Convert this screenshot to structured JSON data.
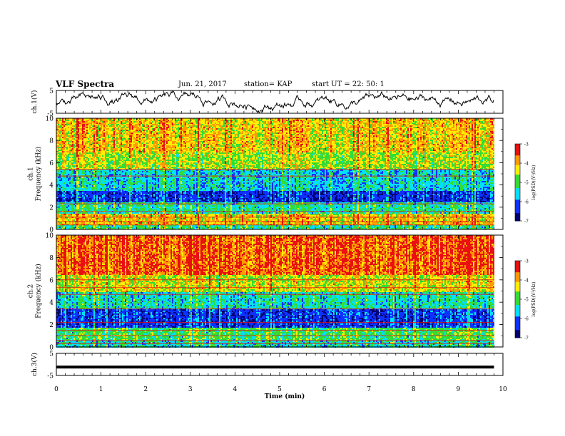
{
  "header": {
    "title": "VLF Spectra",
    "date": "Jun. 21, 2017",
    "station": "station= KAP",
    "start": "start UT =  22: 50: 1"
  },
  "chart_data": [
    {
      "type": "line",
      "name": "ch1-waveform",
      "ylabel": "ch.1(V)",
      "ylim": [
        -5,
        5
      ],
      "yticks": [
        "5",
        "-5"
      ],
      "xlim": [
        0,
        10
      ],
      "series": [
        {
          "name": "",
          "description_free": true,
          "noise_amplitude_V": 3.5,
          "x_end": 9.8
        }
      ]
    },
    {
      "type": "heatmap",
      "name": "ch1-spectrogram",
      "ylabel": "ch.1\nFrequency (kHz)",
      "ylim": [
        0,
        10
      ],
      "yticks": [
        "0",
        "2",
        "4",
        "6",
        "8",
        "10"
      ],
      "xlim": [
        0,
        9.8
      ],
      "colorbar": {
        "label": "log(PSD)(V²/Hz)",
        "ticks": [
          "-3",
          "-4",
          "-5",
          "-6",
          "-7"
        ],
        "range": [
          -7,
          -3
        ]
      },
      "bands": [
        {
          "f": [
            0,
            0.5
          ],
          "level": -5.2
        },
        {
          "f": [
            0.5,
            1.5
          ],
          "level": -4.2
        },
        {
          "f": [
            1.5,
            2.5
          ],
          "level": -5.3
        },
        {
          "f": [
            2.5,
            3.5
          ],
          "level": -6.4
        },
        {
          "f": [
            3.5,
            5.5
          ],
          "level": -5.6
        },
        {
          "f": [
            5.5,
            7.0
          ],
          "level": -4.6
        },
        {
          "f": [
            7.0,
            10.0
          ],
          "level": -4.2
        }
      ],
      "lines_kHz": [
        0.4,
        0.7,
        1.1,
        1.6,
        2.3,
        4.8,
        5.4
      ]
    },
    {
      "type": "heatmap",
      "name": "ch2-spectrogram",
      "ylabel": "ch.2\nFrequency (kHz)",
      "ylim": [
        0,
        10
      ],
      "yticks": [
        "0",
        "2",
        "4",
        "6",
        "8",
        "10"
      ],
      "xlim": [
        0,
        9.8
      ],
      "colorbar": {
        "label": "log(PSD)(V²/Hz)",
        "ticks": [
          "-3",
          "-4",
          "-5",
          "-6",
          "-7"
        ],
        "range": [
          -7,
          -3
        ]
      },
      "bands": [
        {
          "f": [
            0,
            0.7
          ],
          "level": -5.4
        },
        {
          "f": [
            0.7,
            1.8
          ],
          "level": -5.0
        },
        {
          "f": [
            1.8,
            3.5
          ],
          "level": -6.3
        },
        {
          "f": [
            3.5,
            5.0
          ],
          "level": -5.4
        },
        {
          "f": [
            5.0,
            6.5
          ],
          "level": -4.4
        },
        {
          "f": [
            6.5,
            10.0
          ],
          "level": -3.6
        }
      ],
      "lines_kHz": [
        0.3,
        0.6,
        1.0,
        1.5,
        2.2,
        3.4,
        4.7,
        5.3,
        6.0
      ]
    },
    {
      "type": "line",
      "name": "ch3-waveform",
      "ylabel": "ch.3(V)",
      "ylim": [
        -5,
        5
      ],
      "yticks": [
        "5",
        "-5"
      ],
      "xlim": [
        0,
        10
      ],
      "series": [
        {
          "name": "",
          "constant_V": -1.2,
          "x_end": 9.8
        }
      ]
    }
  ],
  "xaxis": {
    "label": "Time (min)",
    "ticks": [
      "0",
      "1",
      "2",
      "3",
      "4",
      "5",
      "6",
      "7",
      "8",
      "9",
      "10"
    ]
  },
  "colors": {
    "red": "#e81010",
    "orange": "#ff9900",
    "yellow": "#ffee00",
    "green": "#33dd33",
    "cyan": "#00e0ff",
    "blue": "#1030ff",
    "navy": "#000070"
  }
}
